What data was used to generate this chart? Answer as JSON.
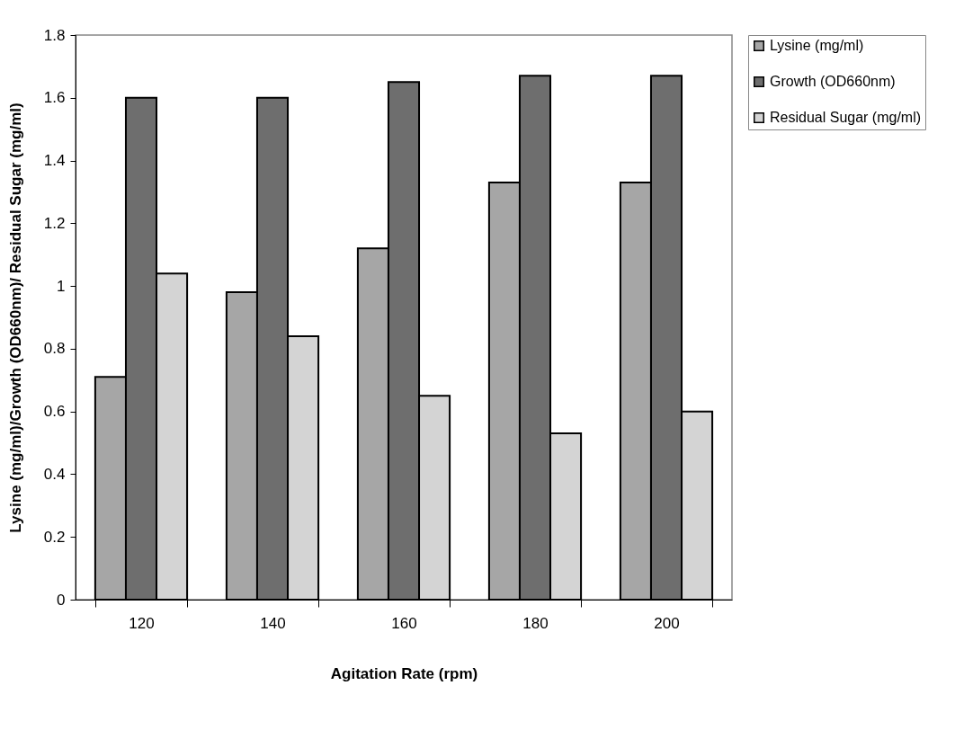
{
  "chart_data": {
    "type": "bar",
    "xlabel": "Agitation Rate (rpm)",
    "ylabel": "Lysine (mg/ml)/Growth (OD660nm)/ Residual Sugar (mg/ml)",
    "categories": [
      "120",
      "140",
      "160",
      "180",
      "200"
    ],
    "series": [
      {
        "name": "Lysine (mg/ml)",
        "color": "#a6a6a6",
        "values": [
          0.71,
          0.98,
          1.12,
          1.33,
          1.33
        ]
      },
      {
        "name": "Growth (OD660nm)",
        "color": "#6e6e6e",
        "values": [
          1.6,
          1.6,
          1.65,
          1.67,
          1.67
        ]
      },
      {
        "name": "Residual Sugar (mg/ml)",
        "color": "#d4d4d4",
        "values": [
          1.04,
          0.84,
          0.65,
          0.53,
          0.6
        ]
      }
    ],
    "ylim": [
      0,
      1.8
    ],
    "yticks": [
      0,
      0.2,
      0.4,
      0.6,
      0.8,
      1,
      1.2,
      1.4,
      1.6,
      1.8
    ],
    "grid": false,
    "legend": "top right"
  }
}
